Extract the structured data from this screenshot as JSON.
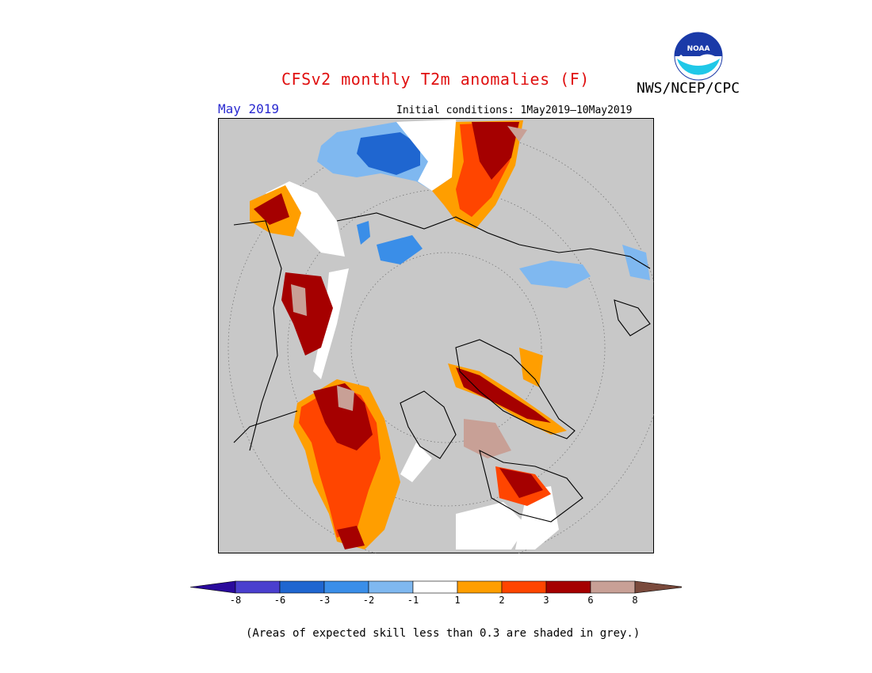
{
  "header": {
    "title": "CFSv2 monthly T2m anomalies (F)",
    "agency": "NWS/NCEP/CPC",
    "period": "May 2019",
    "initial_conditions": "Initial conditions: 1May2019–10May2019",
    "logo_text": "NOAA"
  },
  "colorbar": {
    "tick_labels": [
      "-8",
      "-6",
      "-3",
      "-2",
      "-1",
      "1",
      "2",
      "3",
      "6",
      "8"
    ],
    "colors": [
      "#2a0a9c",
      "#4a3fce",
      "#1f66d0",
      "#3a8ee8",
      "#7fb8f0",
      "#ffffff",
      "#ff9e00",
      "#ff4500",
      "#a50000",
      "#c8a096",
      "#7a4a3c"
    ]
  },
  "footer": {
    "note": "(Areas of expected skill less than 0.3 are shaded in grey.)"
  },
  "colors": {
    "title": "#e01010",
    "period": "#2a2ad0",
    "map_background": "#c8c8c8"
  }
}
